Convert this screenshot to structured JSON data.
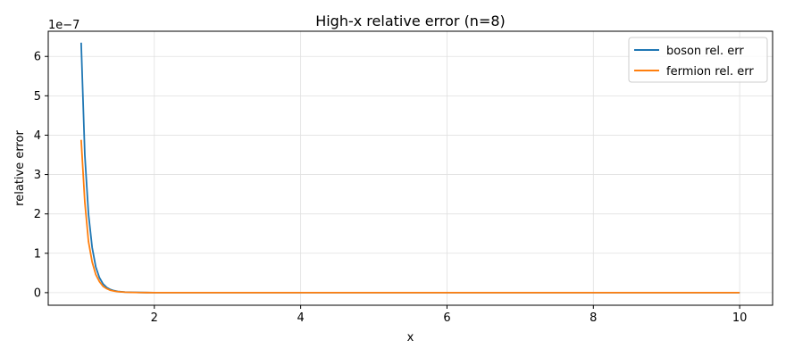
{
  "chart_data": {
    "type": "line",
    "title": "High-x relative error (n=8)",
    "xlabel": "x",
    "ylabel": "relative error",
    "y_offset_label": "1e−7",
    "xlim": [
      0.55,
      10.45
    ],
    "ylim": [
      -0.32,
      6.64
    ],
    "x_ticks": [
      2,
      4,
      6,
      8,
      10
    ],
    "x_tick_labels": [
      "2",
      "4",
      "6",
      "8",
      "10"
    ],
    "y_ticks": [
      0,
      1,
      2,
      3,
      4,
      5,
      6
    ],
    "y_tick_labels": [
      "0",
      "1",
      "2",
      "3",
      "4",
      "5",
      "6"
    ],
    "grid": true,
    "legend_position": "top-right",
    "y_scale_factor": 1e-07,
    "series": [
      {
        "name": "boson rel. err",
        "color": "#1f77b4",
        "x": [
          1.0,
          1.05,
          1.1,
          1.15,
          1.2,
          1.25,
          1.3,
          1.35,
          1.4,
          1.45,
          1.5,
          1.6,
          1.7,
          1.8,
          1.9,
          2.0,
          2.2,
          2.5,
          3.0,
          4.0,
          5.0,
          6.0,
          7.0,
          8.0,
          9.0,
          10.0
        ],
        "y": [
          6.35,
          3.5,
          2.0,
          1.15,
          0.65,
          0.38,
          0.22,
          0.13,
          0.08,
          0.05,
          0.03,
          0.015,
          0.008,
          0.004,
          0.002,
          0.001,
          0.0005,
          0.0002,
          0.0001,
          0,
          0,
          0,
          0,
          0,
          0,
          0
        ]
      },
      {
        "name": "fermion rel. err",
        "color": "#ff7f0e",
        "x": [
          1.0,
          1.05,
          1.1,
          1.15,
          1.2,
          1.25,
          1.3,
          1.35,
          1.4,
          1.45,
          1.5,
          1.6,
          1.7,
          1.8,
          1.9,
          2.0,
          2.2,
          2.5,
          3.0,
          4.0,
          5.0,
          6.0,
          7.0,
          8.0,
          9.0,
          10.0
        ],
        "y": [
          3.88,
          2.3,
          1.3,
          0.78,
          0.46,
          0.28,
          0.16,
          0.1,
          0.06,
          0.04,
          0.025,
          0.012,
          0.006,
          0.003,
          0.0015,
          0.0008,
          0.0004,
          0.0002,
          0.0001,
          0,
          0,
          0,
          0,
          0,
          0,
          0
        ]
      }
    ]
  }
}
